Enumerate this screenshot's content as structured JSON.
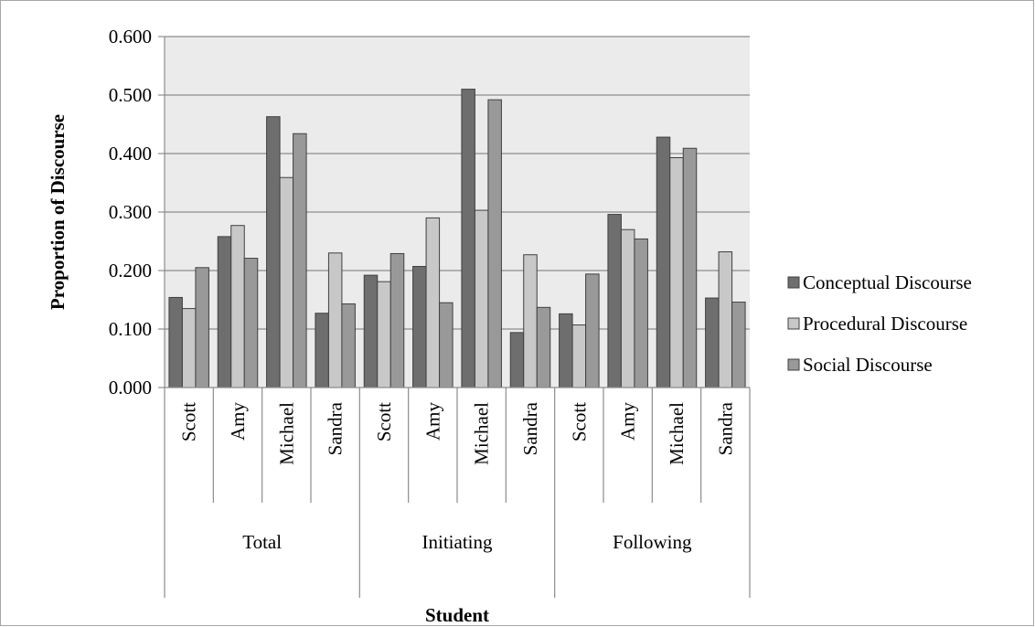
{
  "chart_data": {
    "type": "bar",
    "xlabel": "Student",
    "ylabel": "Proportion of Discourse",
    "ylim": [
      0,
      0.6
    ],
    "yticks": [
      "0.000",
      "0.100",
      "0.200",
      "0.300",
      "0.400",
      "0.500",
      "0.600"
    ],
    "grid": true,
    "legend_position": "right",
    "groups": [
      "Total",
      "Initiating",
      "Following"
    ],
    "students": [
      "Scott",
      "Amy",
      "Michael",
      "Sandra"
    ],
    "categories": [
      "Scott",
      "Amy",
      "Michael",
      "Sandra",
      "Scott",
      "Amy",
      "Michael",
      "Sandra",
      "Scott",
      "Amy",
      "Michael",
      "Sandra"
    ],
    "series": [
      {
        "name": "Conceptual Discourse",
        "color": "#6e6e6e",
        "values": [
          0.154,
          0.258,
          0.463,
          0.127,
          0.192,
          0.207,
          0.51,
          0.094,
          0.126,
          0.296,
          0.428,
          0.153
        ]
      },
      {
        "name": "Procedural Discourse",
        "color": "#c8c8c8",
        "values": [
          0.135,
          0.277,
          0.359,
          0.23,
          0.181,
          0.29,
          0.303,
          0.227,
          0.107,
          0.27,
          0.393,
          0.232
        ]
      },
      {
        "name": "Social Discourse",
        "color": "#999999",
        "values": [
          0.205,
          0.221,
          0.434,
          0.143,
          0.229,
          0.145,
          0.492,
          0.137,
          0.194,
          0.254,
          0.409,
          0.146
        ]
      }
    ]
  }
}
